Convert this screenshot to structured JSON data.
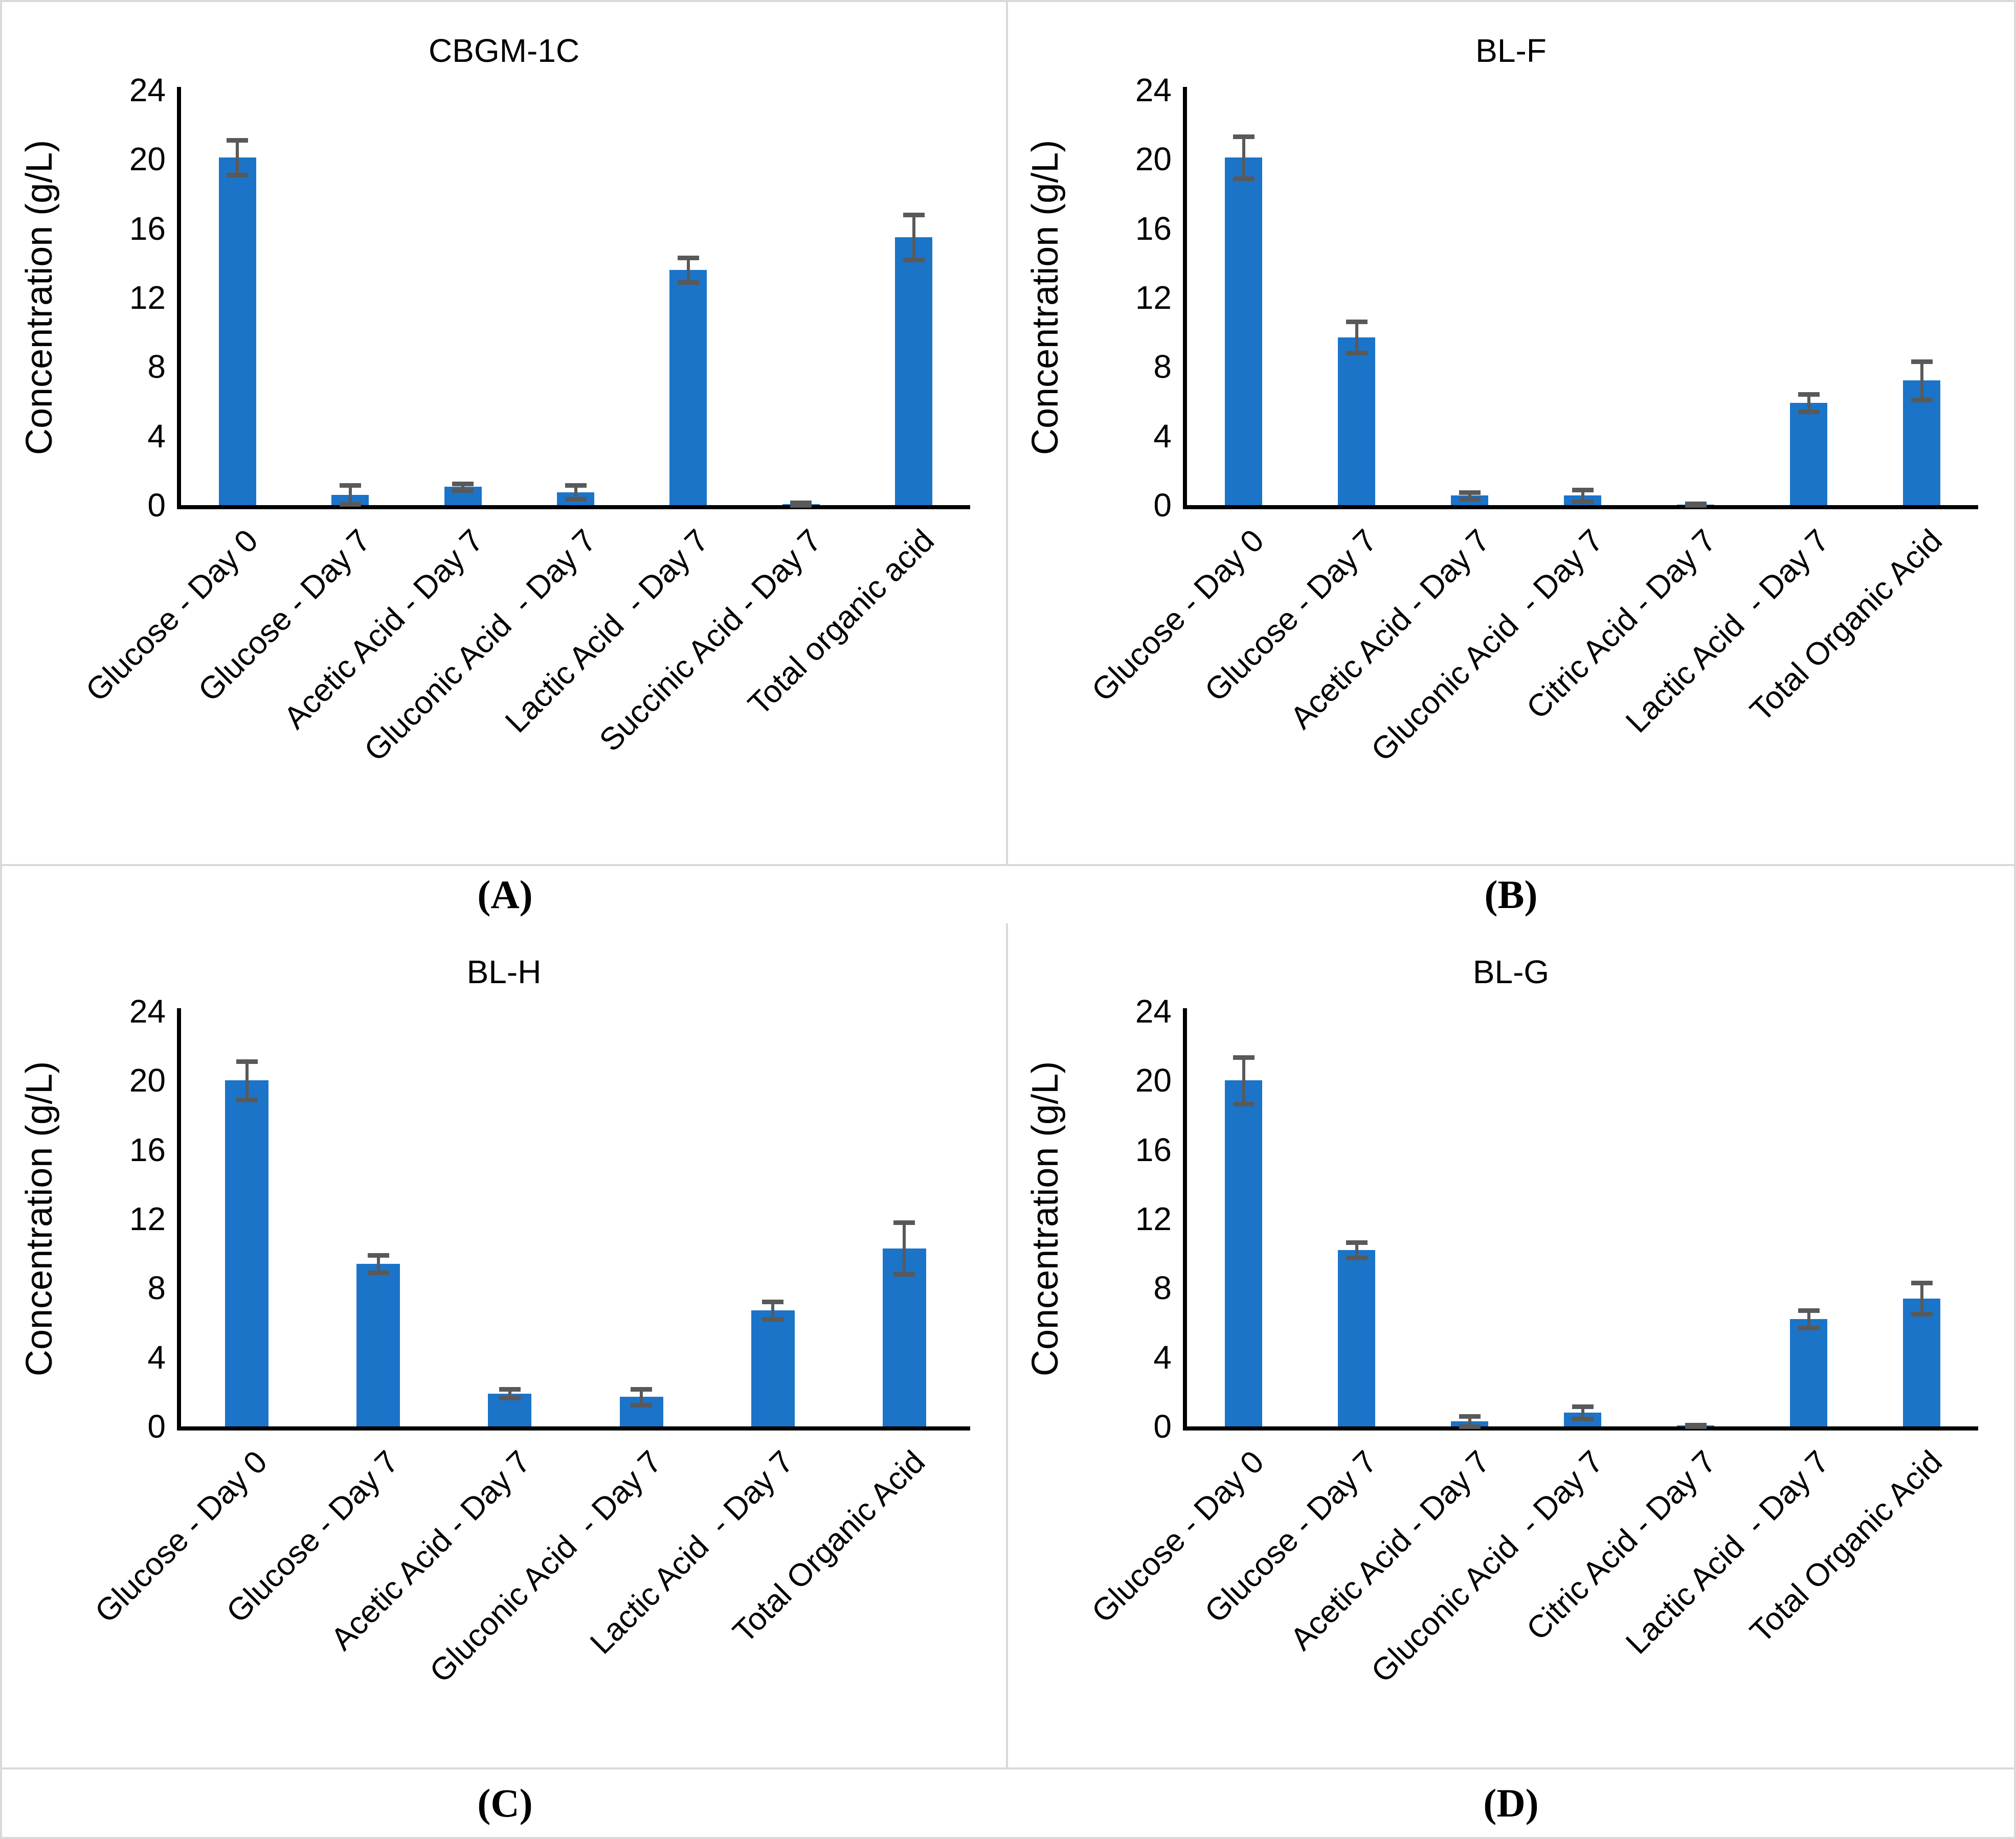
{
  "colors": {
    "bar": "#1b74c8",
    "error_bar": "#595959",
    "axis": "#000000",
    "panel_border": "#d9d9d9",
    "text": "#000000",
    "background": "#ffffff"
  },
  "chart_data": [
    {
      "type": "bar",
      "title": "CBGM-1C",
      "caption": "(A)",
      "ylabel": "Concentration (g/L)",
      "xlabel": "",
      "ylim": [
        0,
        24
      ],
      "yticks": [
        0,
        4,
        8,
        12,
        16,
        20,
        24
      ],
      "grid": false,
      "legend": null,
      "bar_rotation_deg": 45,
      "categories": [
        "Glucose - Day 0",
        "Glucose - Day 7",
        "Acetic Acid - Day 7",
        "Gluconic Acid  - Day 7",
        "Lactic Acid  - Day 7",
        "Succinic Acid - Day 7",
        "Total organic acid"
      ],
      "values": [
        20.1,
        0.6,
        1.05,
        0.75,
        13.6,
        0.05,
        15.5
      ],
      "errors": [
        1.0,
        0.55,
        0.2,
        0.4,
        0.7,
        0.1,
        1.3
      ]
    },
    {
      "type": "bar",
      "title": "BL-F",
      "caption": "(B)",
      "ylabel": "Concentration (g/L)",
      "xlabel": "",
      "ylim": [
        0,
        24
      ],
      "yticks": [
        0,
        4,
        8,
        12,
        16,
        20,
        24
      ],
      "grid": false,
      "legend": null,
      "bar_rotation_deg": 45,
      "categories": [
        "Glucose - Day 0",
        "Glucose - Day 7",
        "Acetic Acid - Day 7",
        "Gluconic Acid  - Day 7",
        "Citric Acid - Day 7",
        "Lactic Acid  - Day 7",
        "Total Organic Acid"
      ],
      "values": [
        20.1,
        9.7,
        0.55,
        0.55,
        0.04,
        5.9,
        7.2
      ],
      "errors": [
        1.2,
        0.9,
        0.2,
        0.35,
        0.04,
        0.5,
        1.1
      ]
    },
    {
      "type": "bar",
      "title": "BL-H",
      "caption": "(C)",
      "ylabel": "Concentration (g/L)",
      "xlabel": "",
      "ylim": [
        0,
        24
      ],
      "yticks": [
        0,
        4,
        8,
        12,
        16,
        20,
        24
      ],
      "grid": false,
      "legend": null,
      "bar_rotation_deg": 45,
      "categories": [
        "Glucose - Day 0",
        "Glucose - Day 7",
        "Acetic Acid - Day 7",
        "Gluconic Acid  - Day 7",
        "Lactic Acid  - Day 7",
        "Total Organic Acid"
      ],
      "values": [
        20.0,
        9.4,
        1.9,
        1.7,
        6.7,
        10.3
      ],
      "errors": [
        1.1,
        0.5,
        0.25,
        0.45,
        0.5,
        1.5
      ]
    },
    {
      "type": "bar",
      "title": "BL-G",
      "caption": "(D)",
      "ylabel": "Concentration (g/L)",
      "xlabel": "",
      "ylim": [
        0,
        24
      ],
      "yticks": [
        0,
        4,
        8,
        12,
        16,
        20,
        24
      ],
      "grid": false,
      "legend": null,
      "bar_rotation_deg": 45,
      "categories": [
        "Glucose - Day 0",
        "Glucose - Day 7",
        "Acetic Acid - Day 7",
        "Gluconic Acid  - Day 7",
        "Citric Acid - Day 7",
        "Lactic Acid  - Day 7",
        "Total Organic Acid"
      ],
      "values": [
        20.0,
        10.2,
        0.3,
        0.8,
        0.05,
        6.2,
        7.4
      ],
      "errors": [
        1.35,
        0.45,
        0.3,
        0.35,
        0.05,
        0.5,
        0.9
      ]
    }
  ]
}
